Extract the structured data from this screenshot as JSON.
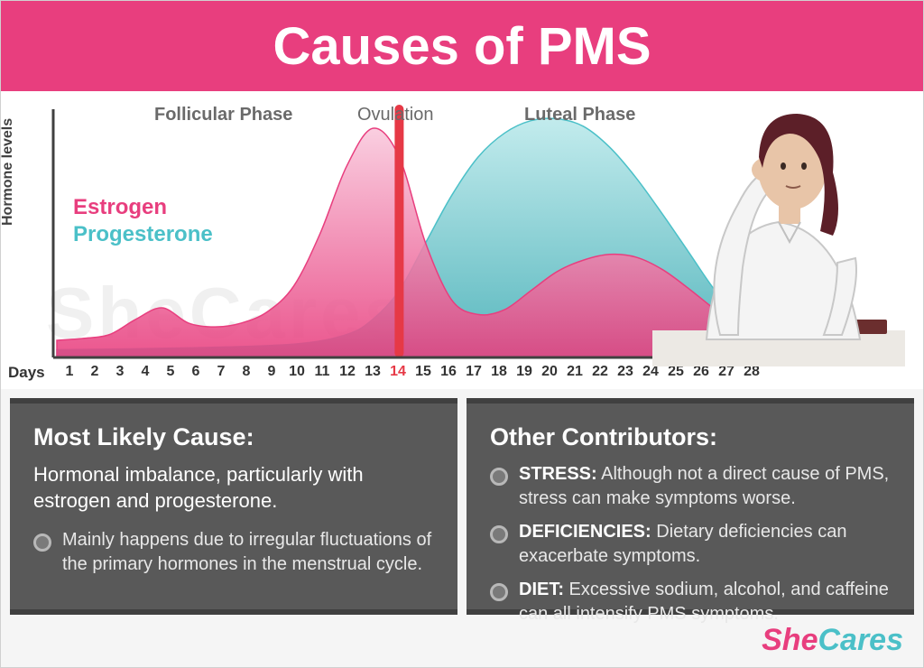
{
  "header": {
    "title": "Causes of PMS",
    "background_color": "#e83e7e",
    "text_color": "#ffffff"
  },
  "chart": {
    "type": "area",
    "y_label": "Hormone levels",
    "x_label": "Days",
    "background_color": "#ffffff",
    "axis_color": "#404040",
    "phases": {
      "follicular": "Follicular Phase",
      "ovulation": "Ovulation",
      "luteal": "Luteal Phase"
    },
    "phase_label_color": "#6a6a6a",
    "x_ticks": [
      1,
      2,
      3,
      4,
      5,
      6,
      7,
      8,
      9,
      10,
      11,
      12,
      13,
      14,
      15,
      16,
      17,
      18,
      19,
      20,
      21,
      22,
      23,
      24,
      25,
      26,
      27,
      28
    ],
    "x_highlight": 14,
    "x_highlight_color": "#e63946",
    "legend": {
      "estrogen": {
        "label": "Estrogen",
        "color": "#e83e7e"
      },
      "progesterone": {
        "label": "Progesterone",
        "color": "#4bc0c8"
      }
    },
    "series": {
      "estrogen": {
        "color_fill_top": "#f9c8dc",
        "color_fill_bottom": "#e83e7e",
        "stroke": "#e83e7e",
        "points": [
          [
            1,
            18
          ],
          [
            2,
            20
          ],
          [
            3,
            24
          ],
          [
            4,
            40
          ],
          [
            5,
            52
          ],
          [
            6,
            36
          ],
          [
            7,
            32
          ],
          [
            8,
            36
          ],
          [
            9,
            48
          ],
          [
            10,
            75
          ],
          [
            11,
            130
          ],
          [
            12,
            200
          ],
          [
            13,
            240
          ],
          [
            14,
            210
          ],
          [
            15,
            120
          ],
          [
            16,
            60
          ],
          [
            17,
            45
          ],
          [
            18,
            50
          ],
          [
            19,
            70
          ],
          [
            20,
            90
          ],
          [
            21,
            102
          ],
          [
            22,
            108
          ],
          [
            23,
            105
          ],
          [
            24,
            92
          ],
          [
            25,
            72
          ],
          [
            26,
            50
          ],
          [
            27,
            30
          ],
          [
            28,
            18
          ]
        ]
      },
      "progesterone": {
        "color_fill_top": "#b8e8ea",
        "color_fill_bottom": "#3aaab2",
        "stroke": "#4bc0c8",
        "points": [
          [
            1,
            8
          ],
          [
            6,
            10
          ],
          [
            10,
            14
          ],
          [
            12,
            24
          ],
          [
            13,
            40
          ],
          [
            14,
            70
          ],
          [
            15,
            120
          ],
          [
            16,
            170
          ],
          [
            17,
            210
          ],
          [
            18,
            235
          ],
          [
            19,
            248
          ],
          [
            20,
            250
          ],
          [
            21,
            242
          ],
          [
            22,
            220
          ],
          [
            23,
            188
          ],
          [
            24,
            150
          ],
          [
            25,
            110
          ],
          [
            26,
            70
          ],
          [
            27,
            40
          ],
          [
            28,
            18
          ]
        ]
      }
    },
    "ovulation_bar": {
      "x": 14,
      "color": "#e63946",
      "width": 10
    },
    "scale": {
      "x_min": 1,
      "x_max": 28,
      "y_min": 0,
      "y_max": 260
    }
  },
  "watermark": "SheCares",
  "info": {
    "box_background": "#595959",
    "box_border": "#404040",
    "text_color": "#ffffff",
    "left": {
      "heading": "Most Likely Cause:",
      "lead": "Hormonal imbalance, particularly with estrogen and progesterone.",
      "bullets": [
        {
          "strong": "",
          "text": "Mainly happens due to irregular fluctuations of the primary hormones in the menstrual cycle."
        }
      ]
    },
    "right": {
      "heading": "Other Contributors:",
      "bullets": [
        {
          "strong": "STRESS:",
          "text": " Although not a direct cause of PMS, stress can make symptoms worse."
        },
        {
          "strong": "DEFICIENCIES:",
          "text": " Dietary deficiencies can exacerbate symptoms."
        },
        {
          "strong": "DIET:",
          "text": " Excessive sodium, alcohol, and caffeine can all intensify PMS symptoms."
        }
      ]
    }
  },
  "logo": {
    "she": {
      "text": "She",
      "color": "#e83e7e"
    },
    "cares": {
      "text": "Cares",
      "color": "#4bc0c8"
    }
  },
  "illustration": {
    "description": "Woman resting head on hand, stressed expression, white blouse, dark red hair",
    "shirt_color": "#f4f4f4",
    "hair_color": "#5c1f28",
    "skin_color": "#e8c5a8",
    "desk_color": "#ece9e4",
    "book_color": "#6b2e2e"
  }
}
